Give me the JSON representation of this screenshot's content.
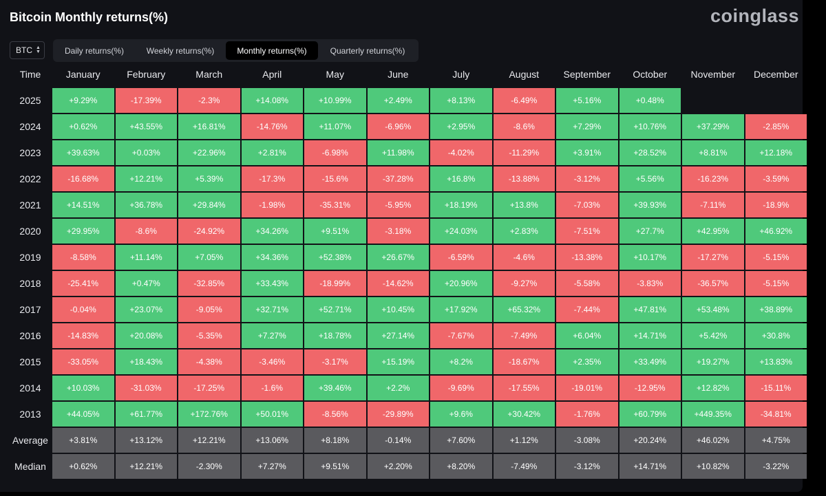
{
  "title": "Bitcoin Monthly returns(%)",
  "brand": "coinglass",
  "coin_select": {
    "value": "BTC",
    "icon": "chevron-updown-icon"
  },
  "tabs": [
    {
      "label": "Daily returns(%)",
      "active": false
    },
    {
      "label": "Weekly returns(%)",
      "active": false
    },
    {
      "label": "Monthly returns(%)",
      "active": true
    },
    {
      "label": "Quarterly returns(%)",
      "active": false
    }
  ],
  "colors": {
    "positive": "#4fc97b",
    "negative": "#f0676a",
    "summary": "#5a5a5e",
    "background": "#111217"
  },
  "table": {
    "time_header": "Time",
    "months": [
      "January",
      "February",
      "March",
      "April",
      "May",
      "June",
      "July",
      "August",
      "September",
      "October",
      "November",
      "December"
    ],
    "rows": [
      {
        "year": "2025",
        "values": [
          "+9.29%",
          "-17.39%",
          "-2.3%",
          "+14.08%",
          "+10.99%",
          "+2.49%",
          "+8.13%",
          "-6.49%",
          "+5.16%",
          "+0.48%",
          "",
          ""
        ]
      },
      {
        "year": "2024",
        "values": [
          "+0.62%",
          "+43.55%",
          "+16.81%",
          "-14.76%",
          "+11.07%",
          "-6.96%",
          "+2.95%",
          "-8.6%",
          "+7.29%",
          "+10.76%",
          "+37.29%",
          "-2.85%"
        ]
      },
      {
        "year": "2023",
        "values": [
          "+39.63%",
          "+0.03%",
          "+22.96%",
          "+2.81%",
          "-6.98%",
          "+11.98%",
          "-4.02%",
          "-11.29%",
          "+3.91%",
          "+28.52%",
          "+8.81%",
          "+12.18%"
        ]
      },
      {
        "year": "2022",
        "values": [
          "-16.68%",
          "+12.21%",
          "+5.39%",
          "-17.3%",
          "-15.6%",
          "-37.28%",
          "+16.8%",
          "-13.88%",
          "-3.12%",
          "+5.56%",
          "-16.23%",
          "-3.59%"
        ]
      },
      {
        "year": "2021",
        "values": [
          "+14.51%",
          "+36.78%",
          "+29.84%",
          "-1.98%",
          "-35.31%",
          "-5.95%",
          "+18.19%",
          "+13.8%",
          "-7.03%",
          "+39.93%",
          "-7.11%",
          "-18.9%"
        ]
      },
      {
        "year": "2020",
        "values": [
          "+29.95%",
          "-8.6%",
          "-24.92%",
          "+34.26%",
          "+9.51%",
          "-3.18%",
          "+24.03%",
          "+2.83%",
          "-7.51%",
          "+27.7%",
          "+42.95%",
          "+46.92%"
        ]
      },
      {
        "year": "2019",
        "values": [
          "-8.58%",
          "+11.14%",
          "+7.05%",
          "+34.36%",
          "+52.38%",
          "+26.67%",
          "-6.59%",
          "-4.6%",
          "-13.38%",
          "+10.17%",
          "-17.27%",
          "-5.15%"
        ]
      },
      {
        "year": "2018",
        "values": [
          "-25.41%",
          "+0.47%",
          "-32.85%",
          "+33.43%",
          "-18.99%",
          "-14.62%",
          "+20.96%",
          "-9.27%",
          "-5.58%",
          "-3.83%",
          "-36.57%",
          "-5.15%"
        ]
      },
      {
        "year": "2017",
        "values": [
          "-0.04%",
          "+23.07%",
          "-9.05%",
          "+32.71%",
          "+52.71%",
          "+10.45%",
          "+17.92%",
          "+65.32%",
          "-7.44%",
          "+47.81%",
          "+53.48%",
          "+38.89%"
        ]
      },
      {
        "year": "2016",
        "values": [
          "-14.83%",
          "+20.08%",
          "-5.35%",
          "+7.27%",
          "+18.78%",
          "+27.14%",
          "-7.67%",
          "-7.49%",
          "+6.04%",
          "+14.71%",
          "+5.42%",
          "+30.8%"
        ]
      },
      {
        "year": "2015",
        "values": [
          "-33.05%",
          "+18.43%",
          "-4.38%",
          "-3.46%",
          "-3.17%",
          "+15.19%",
          "+8.2%",
          "-18.67%",
          "+2.35%",
          "+33.49%",
          "+19.27%",
          "+13.83%"
        ]
      },
      {
        "year": "2014",
        "values": [
          "+10.03%",
          "-31.03%",
          "-17.25%",
          "-1.6%",
          "+39.46%",
          "+2.2%",
          "-9.69%",
          "-17.55%",
          "-19.01%",
          "-12.95%",
          "+12.82%",
          "-15.11%"
        ]
      },
      {
        "year": "2013",
        "values": [
          "+44.05%",
          "+61.77%",
          "+172.76%",
          "+50.01%",
          "-8.56%",
          "-29.89%",
          "+9.6%",
          "+30.42%",
          "-1.76%",
          "+60.79%",
          "+449.35%",
          "-34.81%"
        ]
      }
    ],
    "summary": [
      {
        "label": "Average",
        "values": [
          "+3.81%",
          "+13.12%",
          "+12.21%",
          "+13.06%",
          "+8.18%",
          "-0.14%",
          "+7.60%",
          "+1.12%",
          "-3.08%",
          "+20.24%",
          "+46.02%",
          "+4.75%"
        ]
      },
      {
        "label": "Median",
        "values": [
          "+0.62%",
          "+12.21%",
          "-2.30%",
          "+7.27%",
          "+9.51%",
          "+2.20%",
          "+8.20%",
          "-7.49%",
          "-3.12%",
          "+14.71%",
          "+10.82%",
          "-3.22%"
        ]
      }
    ]
  }
}
